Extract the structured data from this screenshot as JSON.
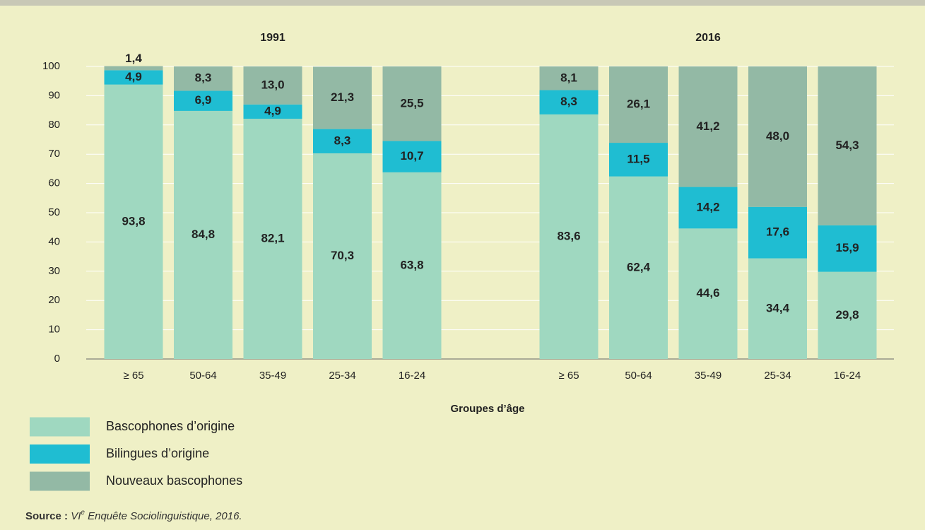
{
  "chart_data": {
    "type": "bar",
    "stacked": true,
    "groups": [
      "1991",
      "2016"
    ],
    "categories": [
      "≥ 65",
      "50-64",
      "35-49",
      "25-34",
      "16-24",
      "≥ 65",
      "50-64",
      "35-49",
      "25-34",
      "16-24"
    ],
    "x_label": "Groupes d’âge",
    "ylim": [
      0,
      100
    ],
    "yticks": [
      0,
      10,
      20,
      30,
      40,
      50,
      60,
      70,
      80,
      90,
      100
    ],
    "grid": true,
    "series": [
      {
        "name": "Bascophones d’origine",
        "color": "#9fd8c0",
        "values": [
          93.8,
          84.8,
          82.1,
          70.3,
          63.8,
          83.6,
          62.4,
          44.6,
          34.4,
          29.8
        ],
        "value_labels": [
          "93,8",
          "84,8",
          "82,1",
          "70,3",
          "63,8",
          "83,6",
          "62,4",
          "44,6",
          "34,4",
          "29,8"
        ]
      },
      {
        "name": "Bilingues d’origine",
        "color": "#1fbdd2",
        "values": [
          4.9,
          6.9,
          4.9,
          8.3,
          10.7,
          8.3,
          11.5,
          14.2,
          17.6,
          15.9
        ],
        "value_labels": [
          "4,9",
          "6,9",
          "4,9",
          "8,3",
          "10,7",
          "8,3",
          "11,5",
          "14,2",
          "17,6",
          "15,9"
        ]
      },
      {
        "name": "Nouveaux bascophones",
        "color": "#93b9a5",
        "values": [
          1.4,
          8.3,
          13,
          21.3,
          25.5,
          8.1,
          26.1,
          41.2,
          48,
          54.3
        ],
        "value_labels": [
          "1,4",
          "8,3",
          "13,0",
          "21,3",
          "25,5",
          "8,1",
          "26,1",
          "41,2",
          "48,0",
          "54,3"
        ]
      }
    ],
    "source_label": "Source :",
    "source_text": [
      "VI",
      "e",
      " Enquête Sociolinguistique, 2016."
    ]
  }
}
